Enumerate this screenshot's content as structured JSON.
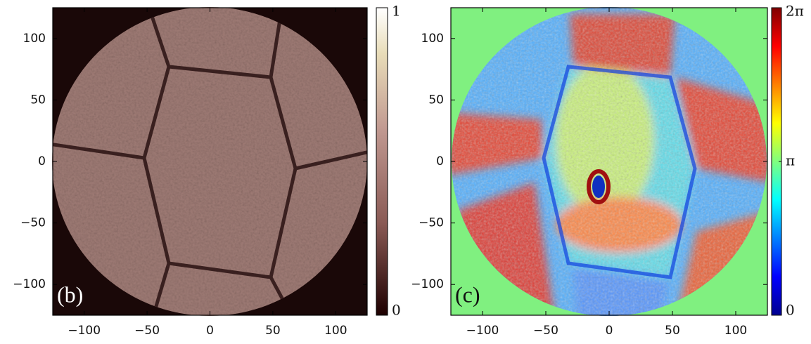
{
  "chart_data": [
    {
      "type": "heatmap",
      "panel_label": "(b)",
      "colormap": "pink",
      "xlim": [
        -125,
        125
      ],
      "ylim": [
        -125,
        125
      ],
      "xticks": [
        {
          "value": -100,
          "label": "−100"
        },
        {
          "value": -50,
          "label": "−50"
        },
        0,
        50,
        100
      ],
      "yticks": [
        {
          "value": -100,
          "label": "−100"
        },
        {
          "value": -50,
          "label": "−50"
        },
        0,
        50,
        100
      ],
      "clim": [
        0,
        1
      ],
      "cticks": [
        0,
        1
      ]
    },
    {
      "type": "heatmap",
      "panel_label": "(c)",
      "colormap": "jet",
      "xlim": [
        -125,
        125
      ],
      "ylim": [
        -125,
        125
      ],
      "xticks": [
        {
          "value": -100,
          "label": "−100"
        },
        {
          "value": -50,
          "label": "−50"
        },
        0,
        50,
        100
      ],
      "yticks": [
        {
          "value": -100,
          "label": "−100"
        },
        {
          "value": -50,
          "label": "−50"
        },
        0,
        50,
        100
      ],
      "clim": [
        0,
        6.28319
      ],
      "cticks": [
        0,
        {
          "value": 3.14159,
          "label": "π"
        },
        {
          "value": 6.28319,
          "label": "2π"
        }
      ]
    }
  ]
}
